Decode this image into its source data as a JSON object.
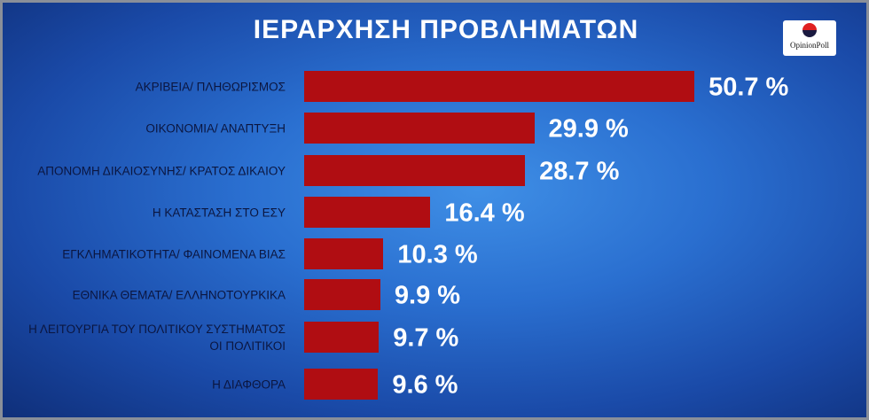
{
  "chart_data": {
    "type": "bar",
    "orientation": "horizontal",
    "title": "ΙΕΡΑΡΧΗΣΗ ΠΡΟΒΛΗΜΑΤΩΝ",
    "source": "OpinionPoll",
    "categories": [
      "ΑΚΡΙΒΕΙΑ/ ΠΛΗΘΩΡΙΣΜΟΣ",
      "ΟΙΚΟΝΟΜΙΑ/ ΑΝΑΠΤΥΞΗ",
      "ΑΠΟΝΟΜΗ ΔΙΚΑΙΟΣΥΝΗΣ/ ΚΡΑΤΟΣ ΔΙΚΑΙΟΥ",
      "Η ΚΑΤΑΣΤΑΣΗ ΣΤΟ ΕΣΥ",
      "ΕΓΚΛΗΜΑΤΙΚΟΤΗΤΑ/ ΦΑΙΝΟΜΕΝΑ ΒΙΑΣ",
      "ΕΘΝΙΚΑ ΘΕΜΑΤΑ/ ΕΛΛΗΝΟΤΟΥΡΚΙΚΑ",
      "Η ΛΕΙΤΟΥΡΓΙΑ ΤΟΥ ΠΟΛΙΤΙΚΟΥ ΣΥΣΤΗΜΑΤΟΣ\nΟΙ ΠΟΛΙΤΙΚΟΙ",
      "Η ΔΙΑΦΘΟΡΑ"
    ],
    "values": [
      50.7,
      29.9,
      28.7,
      16.4,
      10.3,
      9.9,
      9.7,
      9.6
    ],
    "value_labels": [
      "50.7 %",
      "29.9 %",
      "28.7 %",
      "16.4 %",
      "10.3 %",
      "9.9 %",
      "9.7 %",
      "9.6 %"
    ],
    "color": "#b00d12"
  }
}
